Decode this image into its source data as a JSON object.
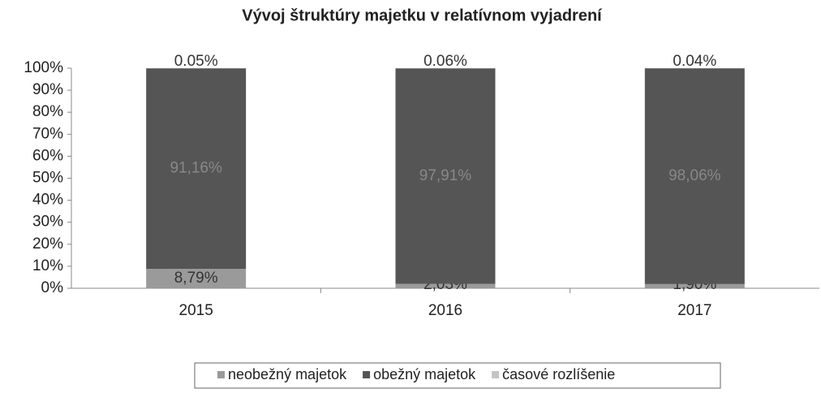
{
  "chart_data": {
    "type": "stacked_bar",
    "title": "Vývoj štruktúry majetku v relatívnom vyjadrení",
    "categories": [
      "2015",
      "2016",
      "2017"
    ],
    "series": [
      {
        "name": "neobežný majetok",
        "color": "#9a9a9a",
        "values": [
          8.79,
          2.03,
          1.9
        ],
        "value_labels": [
          "8,79%",
          "2,03%",
          "1,90%"
        ]
      },
      {
        "name": "obežný majetok",
        "color": "#555555",
        "values": [
          91.16,
          97.91,
          98.06
        ],
        "value_labels": [
          "91,16%",
          "97,91%",
          "98,06%"
        ]
      },
      {
        "name": "časové rozlíšenie",
        "color": "#c4c4c4",
        "values": [
          0.05,
          0.06,
          0.04
        ],
        "value_labels": [
          "0.05%",
          "0.06%",
          "0.04%"
        ]
      }
    ],
    "ylim": [
      0,
      100
    ],
    "yticks": [
      {
        "value": 0,
        "label": "0%"
      },
      {
        "value": 10,
        "label": "10%"
      },
      {
        "value": 20,
        "label": "20%"
      },
      {
        "value": 30,
        "label": "30%"
      },
      {
        "value": 40,
        "label": "40%"
      },
      {
        "value": 50,
        "label": "50%"
      },
      {
        "value": 60,
        "label": "60%"
      },
      {
        "value": 70,
        "label": "70%"
      },
      {
        "value": 80,
        "label": "80%"
      },
      {
        "value": 90,
        "label": "90%"
      },
      {
        "value": 100,
        "label": "100%"
      }
    ],
    "legend": "bottom"
  }
}
